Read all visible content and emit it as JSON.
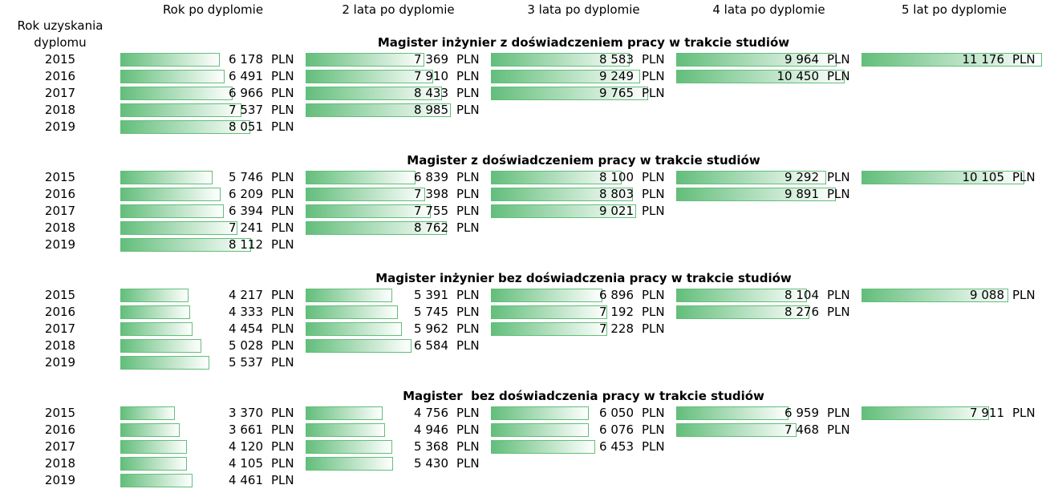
{
  "header": {
    "year_label": "Rok uzyskania dyplomu",
    "columns": [
      "Rok po dyplomie",
      "2 lata po dyplomie",
      "3 lata po dyplomie",
      "4 lata po dyplomie",
      "5 lat po dyplomie"
    ]
  },
  "unit": "PLN",
  "sections": [
    {
      "title": "Magister inżynier z doświadczeniem pracy w trakcie studiów",
      "rows": [
        {
          "year": "2015",
          "values": [
            6178,
            7369,
            8583,
            9964,
            11176
          ],
          "value_labels": [
            "6 178",
            "7 369",
            "8 583",
            "9 964",
            "11 176"
          ]
        },
        {
          "year": "2016",
          "values": [
            6491,
            7910,
            9249,
            10450
          ],
          "value_labels": [
            "6 491",
            "7 910",
            "9 249",
            "10 450"
          ]
        },
        {
          "year": "2017",
          "values": [
            6966,
            8433,
            9765
          ],
          "value_labels": [
            "6 966",
            "8 433",
            "9 765"
          ]
        },
        {
          "year": "2018",
          "values": [
            7537,
            8985
          ],
          "value_labels": [
            "7 537",
            "8 985"
          ]
        },
        {
          "year": "2019",
          "values": [
            8051
          ],
          "value_labels": [
            "8 051"
          ]
        }
      ]
    },
    {
      "title": "Magister z doświadczeniem pracy w trakcie studiów",
      "rows": [
        {
          "year": "2015",
          "values": [
            5746,
            6839,
            8100,
            9292,
            10105
          ],
          "value_labels": [
            "5 746",
            "6 839",
            "8 100",
            "9 292",
            "10 105"
          ]
        },
        {
          "year": "2016",
          "values": [
            6209,
            7398,
            8803,
            9891
          ],
          "value_labels": [
            "6 209",
            "7 398",
            "8 803",
            "9 891"
          ]
        },
        {
          "year": "2017",
          "values": [
            6394,
            7755,
            9021
          ],
          "value_labels": [
            "6 394",
            "7 755",
            "9 021"
          ]
        },
        {
          "year": "2018",
          "values": [
            7241,
            8762
          ],
          "value_labels": [
            "7 241",
            "8 762"
          ]
        },
        {
          "year": "2019",
          "values": [
            8112
          ],
          "value_labels": [
            "8 112"
          ]
        }
      ]
    },
    {
      "title": "Magister inżynier bez doświadczenia pracy w trakcie studiów",
      "rows": [
        {
          "year": "2015",
          "values": [
            4217,
            5391,
            6896,
            8104,
            9088
          ],
          "value_labels": [
            "4 217",
            "5 391",
            "6 896",
            "8 104",
            "9 088"
          ]
        },
        {
          "year": "2016",
          "values": [
            4333,
            5745,
            7192,
            8276
          ],
          "value_labels": [
            "4 333",
            "5 745",
            "7 192",
            "8 276"
          ]
        },
        {
          "year": "2017",
          "values": [
            4454,
            5962,
            7228
          ],
          "value_labels": [
            "4 454",
            "5 962",
            "7 228"
          ]
        },
        {
          "year": "2018",
          "values": [
            5028,
            6584
          ],
          "value_labels": [
            "5 028",
            "6 584"
          ]
        },
        {
          "year": "2019",
          "values": [
            5537
          ],
          "value_labels": [
            "5 537"
          ]
        }
      ]
    },
    {
      "title": "Magister  bez doświadczenia pracy w trakcie studiów",
      "rows": [
        {
          "year": "2015",
          "values": [
            3370,
            4756,
            6050,
            6959,
            7911
          ],
          "value_labels": [
            "3 370",
            "4 756",
            "6 050",
            "6 959",
            "7 911"
          ]
        },
        {
          "year": "2016",
          "values": [
            3661,
            4946,
            6076,
            7468
          ],
          "value_labels": [
            "3 661",
            "4 946",
            "6 076",
            "7 468"
          ]
        },
        {
          "year": "2017",
          "values": [
            4120,
            5368,
            6453
          ],
          "value_labels": [
            "4 120",
            "5 368",
            "6 453"
          ]
        },
        {
          "year": "2018",
          "values": [
            4105,
            5430
          ],
          "value_labels": [
            "4 105",
            "5 430"
          ]
        },
        {
          "year": "2019",
          "values": [
            4461
          ],
          "value_labels": [
            "4 461"
          ]
        }
      ]
    }
  ]
}
